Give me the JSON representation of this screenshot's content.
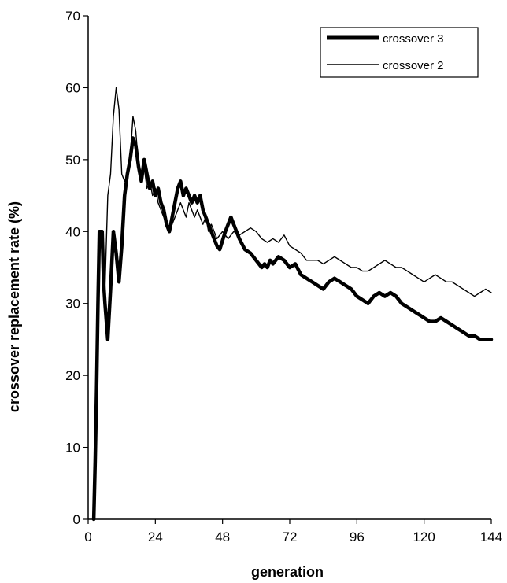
{
  "chart_data": {
    "type": "line",
    "title": "",
    "xlabel": "generation",
    "ylabel": "crossover replacement rate (%)",
    "xlim": [
      0,
      144
    ],
    "ylim": [
      0,
      70
    ],
    "x_ticks": [
      0,
      24,
      48,
      72,
      96,
      120,
      144
    ],
    "y_ticks": [
      0,
      10,
      20,
      30,
      40,
      50,
      60,
      70
    ],
    "grid": false,
    "legend_position": "top-right",
    "series": [
      {
        "name": "crossover 3",
        "color": "#000000",
        "style": "thick",
        "points": [
          [
            2,
            0
          ],
          [
            2.5,
            8
          ],
          [
            3,
            18
          ],
          [
            3.5,
            30
          ],
          [
            4,
            40
          ],
          [
            5,
            40
          ],
          [
            5.5,
            33
          ],
          [
            6,
            30
          ],
          [
            7,
            25
          ],
          [
            8,
            32
          ],
          [
            9,
            40
          ],
          [
            10,
            37
          ],
          [
            11,
            33
          ],
          [
            12,
            38
          ],
          [
            13,
            45
          ],
          [
            14,
            48
          ],
          [
            15,
            50
          ],
          [
            16,
            53
          ],
          [
            17,
            52
          ],
          [
            18,
            49
          ],
          [
            19,
            47
          ],
          [
            20,
            50
          ],
          [
            21,
            48
          ],
          [
            22,
            46
          ],
          [
            23,
            47
          ],
          [
            24,
            45
          ],
          [
            25,
            46
          ],
          [
            26,
            44
          ],
          [
            27,
            43
          ],
          [
            28,
            41
          ],
          [
            29,
            40
          ],
          [
            30,
            42
          ],
          [
            31,
            44
          ],
          [
            32,
            46
          ],
          [
            33,
            47
          ],
          [
            34,
            45
          ],
          [
            35,
            46
          ],
          [
            36,
            45
          ],
          [
            37,
            44
          ],
          [
            38,
            45
          ],
          [
            39,
            44
          ],
          [
            40,
            45
          ],
          [
            41,
            43
          ],
          [
            42,
            42
          ],
          [
            43,
            41
          ],
          [
            44,
            40
          ],
          [
            46,
            38
          ],
          [
            47,
            37.5
          ],
          [
            49,
            40
          ],
          [
            51,
            42
          ],
          [
            52,
            41
          ],
          [
            54,
            39
          ],
          [
            56,
            37.5
          ],
          [
            58,
            37
          ],
          [
            60,
            36
          ],
          [
            62,
            35
          ],
          [
            63,
            35.5
          ],
          [
            64,
            35
          ],
          [
            65,
            36
          ],
          [
            66,
            35.5
          ],
          [
            68,
            36.5
          ],
          [
            70,
            36
          ],
          [
            72,
            35
          ],
          [
            74,
            35.5
          ],
          [
            76,
            34
          ],
          [
            78,
            33.5
          ],
          [
            80,
            33
          ],
          [
            82,
            32.5
          ],
          [
            84,
            32
          ],
          [
            86,
            33
          ],
          [
            88,
            33.5
          ],
          [
            90,
            33
          ],
          [
            92,
            32.5
          ],
          [
            94,
            32
          ],
          [
            96,
            31
          ],
          [
            98,
            30.5
          ],
          [
            100,
            30
          ],
          [
            102,
            31
          ],
          [
            104,
            31.5
          ],
          [
            106,
            31
          ],
          [
            108,
            31.5
          ],
          [
            110,
            31
          ],
          [
            112,
            30
          ],
          [
            114,
            29.5
          ],
          [
            116,
            29
          ],
          [
            118,
            28.5
          ],
          [
            120,
            28
          ],
          [
            122,
            27.5
          ],
          [
            124,
            27.5
          ],
          [
            126,
            28
          ],
          [
            128,
            27.5
          ],
          [
            130,
            27
          ],
          [
            132,
            26.5
          ],
          [
            134,
            26
          ],
          [
            136,
            25.5
          ],
          [
            138,
            25.5
          ],
          [
            140,
            25
          ],
          [
            142,
            25
          ],
          [
            144,
            25
          ]
        ]
      },
      {
        "name": "crossover 2",
        "color": "#000000",
        "style": "thin",
        "points": [
          [
            2,
            0
          ],
          [
            2.5,
            10
          ],
          [
            3,
            22
          ],
          [
            3.5,
            28
          ],
          [
            4,
            38
          ],
          [
            5,
            40
          ],
          [
            5.5,
            36
          ],
          [
            6,
            32
          ],
          [
            7,
            45
          ],
          [
            8,
            48
          ],
          [
            9,
            56
          ],
          [
            10,
            60
          ],
          [
            11,
            57
          ],
          [
            12,
            48
          ],
          [
            13,
            47
          ],
          [
            14,
            48
          ],
          [
            15,
            50
          ],
          [
            16,
            56
          ],
          [
            17,
            54
          ],
          [
            18,
            49
          ],
          [
            19,
            47
          ],
          [
            20,
            49
          ],
          [
            21,
            46
          ],
          [
            22,
            47
          ],
          [
            23,
            45
          ],
          [
            24,
            46
          ],
          [
            25,
            44
          ],
          [
            26,
            43
          ],
          [
            27,
            42
          ],
          [
            28,
            41
          ],
          [
            29,
            40
          ],
          [
            30,
            41
          ],
          [
            31,
            42
          ],
          [
            32,
            43
          ],
          [
            33,
            44
          ],
          [
            34,
            43
          ],
          [
            35,
            42
          ],
          [
            36,
            44
          ],
          [
            37,
            43
          ],
          [
            38,
            42
          ],
          [
            39,
            43
          ],
          [
            40,
            42
          ],
          [
            41,
            41
          ],
          [
            42,
            42
          ],
          [
            43,
            40
          ],
          [
            44,
            41
          ],
          [
            45,
            40
          ],
          [
            46,
            39
          ],
          [
            48,
            40
          ],
          [
            50,
            39
          ],
          [
            52,
            40
          ],
          [
            54,
            39.5
          ],
          [
            56,
            40
          ],
          [
            58,
            40.5
          ],
          [
            60,
            40
          ],
          [
            62,
            39
          ],
          [
            64,
            38.5
          ],
          [
            66,
            39
          ],
          [
            68,
            38.5
          ],
          [
            70,
            39.5
          ],
          [
            72,
            38
          ],
          [
            74,
            37.5
          ],
          [
            76,
            37
          ],
          [
            78,
            36
          ],
          [
            80,
            36
          ],
          [
            82,
            36
          ],
          [
            84,
            35.5
          ],
          [
            86,
            36
          ],
          [
            88,
            36.5
          ],
          [
            90,
            36
          ],
          [
            92,
            35.5
          ],
          [
            94,
            35
          ],
          [
            96,
            35
          ],
          [
            98,
            34.5
          ],
          [
            100,
            34.5
          ],
          [
            102,
            35
          ],
          [
            104,
            35.5
          ],
          [
            106,
            36
          ],
          [
            108,
            35.5
          ],
          [
            110,
            35
          ],
          [
            112,
            35
          ],
          [
            114,
            34.5
          ],
          [
            116,
            34
          ],
          [
            118,
            33.5
          ],
          [
            120,
            33
          ],
          [
            122,
            33.5
          ],
          [
            124,
            34
          ],
          [
            126,
            33.5
          ],
          [
            128,
            33
          ],
          [
            130,
            33
          ],
          [
            132,
            32.5
          ],
          [
            134,
            32
          ],
          [
            136,
            31.5
          ],
          [
            138,
            31
          ],
          [
            140,
            31.5
          ],
          [
            142,
            32
          ],
          [
            144,
            31.5
          ]
        ]
      }
    ]
  }
}
